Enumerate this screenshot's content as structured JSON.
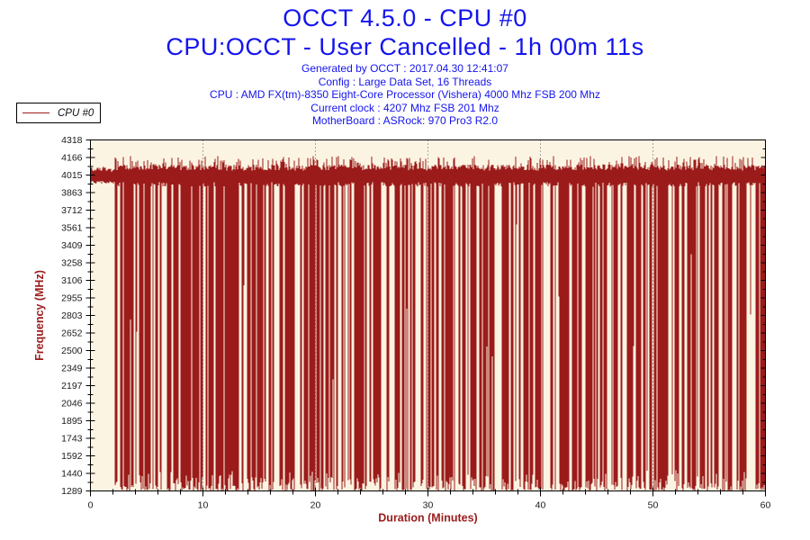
{
  "header": {
    "title": "OCCT 4.5.0 - CPU #0",
    "subtitle": "CPU:OCCT - User Cancelled - 1h 00m 11s",
    "info_lines": [
      "Generated by OCCT : 2017.04.30 12:41:07",
      "Config : Large Data Set, 16 Threads",
      "CPU : AMD FX(tm)-8350 Eight-Core Processor (Vishera) 4000 Mhz FSB 200 Mhz",
      "Current clock : 4207 Mhz FSB 201 Mhz",
      "MotherBoard : ASRock: 970 Pro3 R2.0"
    ]
  },
  "legend": {
    "series": [
      {
        "label": "CPU #0",
        "color": "#9B1B1B"
      }
    ]
  },
  "chart_data": {
    "type": "line",
    "title": "OCCT 4.5.0 - CPU #0",
    "subtitle": "CPU:OCCT - User Cancelled - 1h 00m 11s",
    "xlabel": "Duration (Minutes)",
    "ylabel": "Frequency (MHz)",
    "x_range": [
      0,
      60
    ],
    "x_major_ticks": [
      0,
      10,
      20,
      30,
      40,
      50,
      60
    ],
    "x_minor_step": 2,
    "y_range": [
      1289,
      4318
    ],
    "y_ticks": [
      4318,
      4166,
      4015,
      3863,
      3712,
      3561,
      3409,
      3258,
      3106,
      2955,
      2803,
      2652,
      2500,
      2349,
      2197,
      2046,
      1895,
      1743,
      1592,
      1440,
      1289
    ],
    "series": [
      {
        "name": "CPU #0",
        "summary": {
          "baseline_mhz": 4015,
          "noise_band_mhz": [
            3950,
            4100
          ],
          "peak_mhz": 4180,
          "spike_floor_mhz": 1289,
          "flat_until_min": 2.2,
          "deep_spike_coverage": 0.62,
          "partial_dip_mhz_range": [
            2150,
            3600
          ],
          "behavior": "Frequency holds about 4015 MHz with jitter up to about 4170 MHz; from about 2.2 min until 60 min dense throttling spikes repeatedly drop to 1289-1500 MHz, with occasional partial dips to 2500-3400 MHz (e.g. about 3409 MHz near 12 min)."
        }
      }
    ],
    "gridlines": "dotted vertical lines at each 10-minute major tick",
    "legend_position": "top-left",
    "seed": 20170430,
    "colors": {
      "line": "#9B1B1B",
      "plot_bg": "#FCF4E2",
      "axis": "#000000",
      "tick_label": "#1a1a1a",
      "axis_title": "#9B1B1B",
      "title_blue": "#1414EE"
    }
  }
}
